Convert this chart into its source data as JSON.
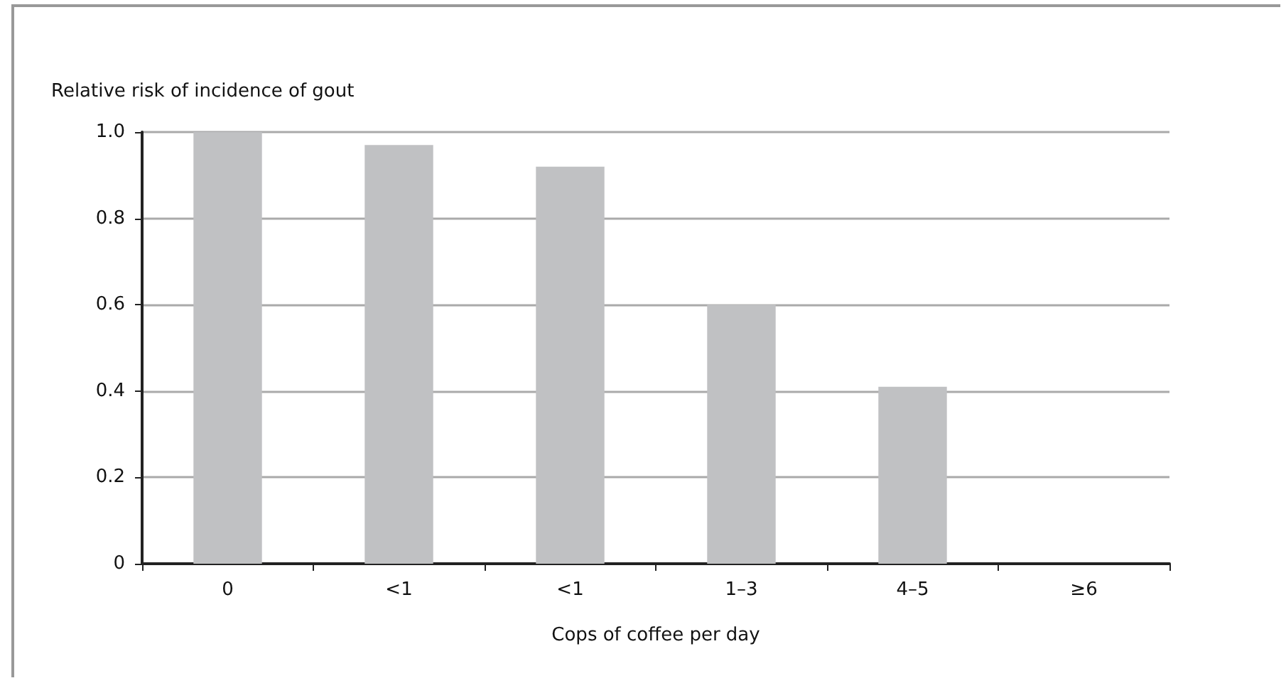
{
  "chart_data": {
    "type": "bar",
    "ylabel": "Relative risk of incidence of gout",
    "xlabel": "Cops of coffee per day",
    "categories": [
      "0",
      "<1",
      "<1",
      "1–3",
      "4–5",
      "≥6"
    ],
    "values": [
      1.0,
      0.97,
      0.92,
      0.6,
      0.41,
      null
    ],
    "color": "#c0c1c3",
    "ylim": [
      0,
      1
    ],
    "yticks": [
      0,
      0.2,
      0.4,
      0.6,
      0.8,
      {
        "value": 1,
        "label": "1.0"
      }
    ],
    "grid": "y"
  }
}
